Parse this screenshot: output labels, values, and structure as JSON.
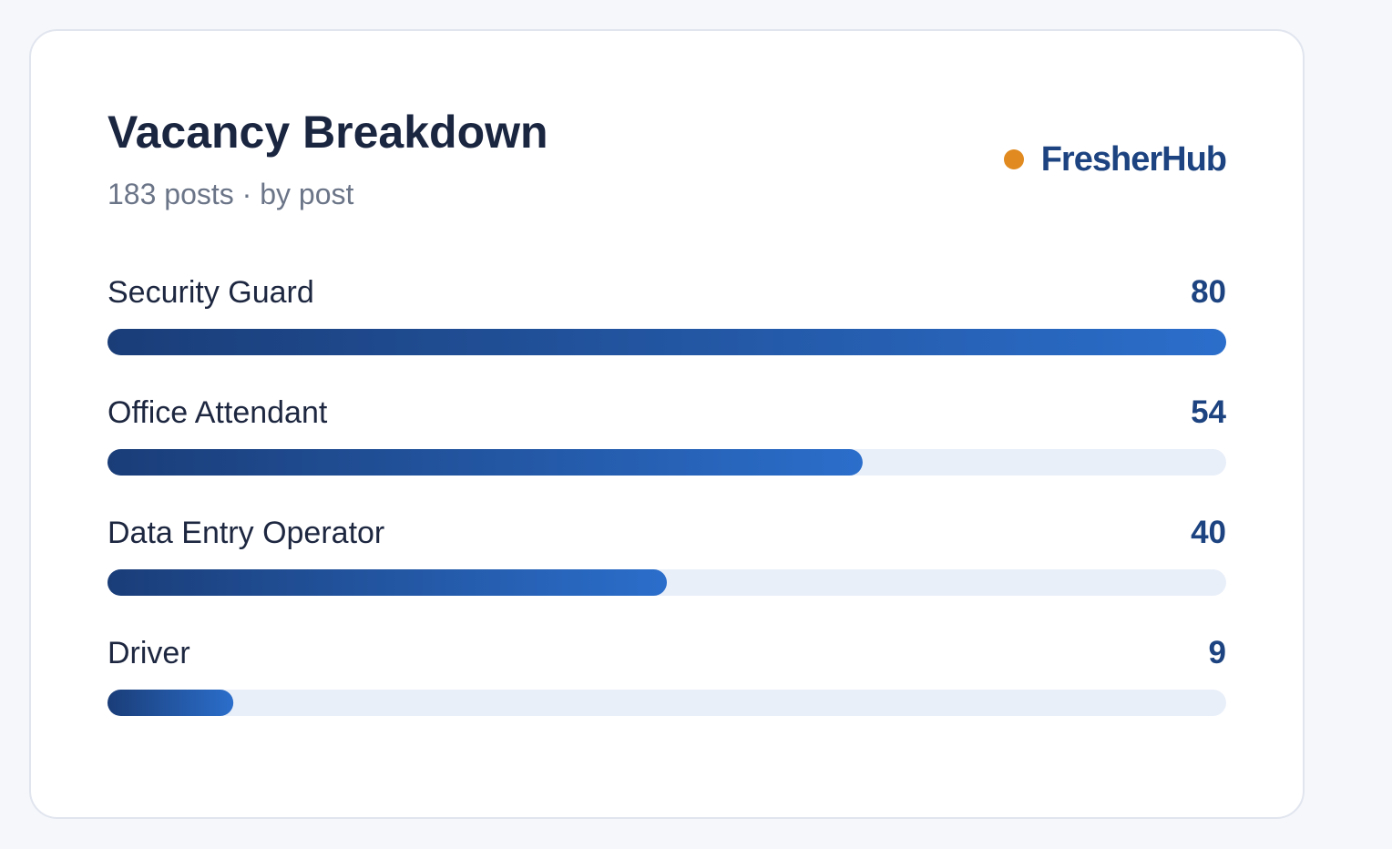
{
  "chart_data": {
    "type": "bar",
    "orientation": "horizontal",
    "title": "Vacancy Breakdown",
    "subtitle": "183 posts · by post",
    "brand": "FresherHub",
    "categories": [
      "Security Guard",
      "Office Attendant",
      "Data Entry Operator",
      "Driver"
    ],
    "values": [
      80,
      54,
      40,
      9
    ],
    "colors": [
      "#1a3d78",
      "#2b6ecb"
    ],
    "track_color": "#e9eff9",
    "brand_dot_color": "#e08a1f"
  }
}
